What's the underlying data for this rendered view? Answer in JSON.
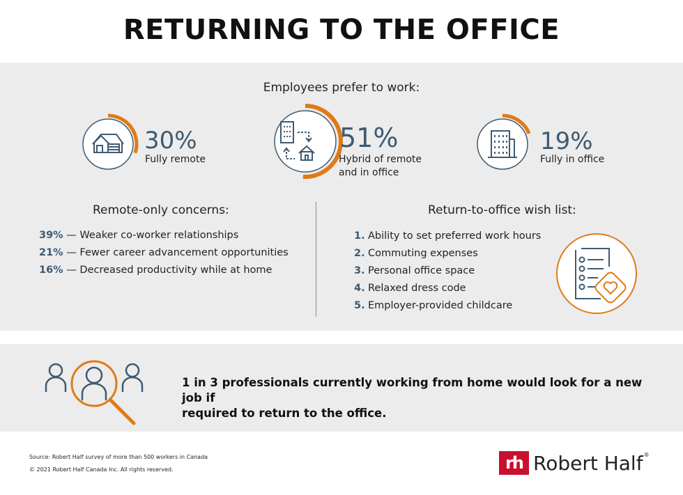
{
  "title": "RETURNING TO THE OFFICE",
  "prefer_heading": "Employees prefer to work:",
  "stats": [
    {
      "percent": "30%",
      "label_line1": "Fully remote",
      "label_line2": "",
      "share": 0.3,
      "icon": "house-icon"
    },
    {
      "percent": "51%",
      "label_line1": "Hybrid of remote",
      "label_line2": "and in office",
      "share": 0.51,
      "icon": "office-to-home-icon"
    },
    {
      "percent": "19%",
      "label_line1": "Fully in office",
      "label_line2": "",
      "share": 0.19,
      "icon": "office-building-icon"
    }
  ],
  "concerns": {
    "heading": "Remote-only concerns:",
    "items": [
      {
        "pct": "39%",
        "text": " — Weaker co-worker relationships"
      },
      {
        "pct": "21%",
        "text": " — Fewer career advancement opportunities"
      },
      {
        "pct": "16%",
        "text": " — Decreased productivity while at home"
      }
    ]
  },
  "wishlist": {
    "heading": "Return-to-office wish list:",
    "items": [
      {
        "num": "1.",
        "text": "Ability to set preferred work hours"
      },
      {
        "num": "2.",
        "text": "Commuting expenses"
      },
      {
        "num": "3.",
        "text": "Personal office space"
      },
      {
        "num": "4.",
        "text": "Relaxed dress code"
      },
      {
        "num": "5.",
        "text": "Employer-provided childcare"
      }
    ],
    "icon": "checklist-heart-icon"
  },
  "bottom": {
    "line1": "1 in 3 professionals currently working from home would look for a new job if",
    "line2": "required to return to the office.",
    "icon": "people-search-icon"
  },
  "footer": {
    "source": "Source: Robert Half survey of more than 500 workers in Canada",
    "copyright": "© 2021 Robert Half Canada Inc. All rights reserved."
  },
  "logo": {
    "mark": "rh",
    "text": "Robert Half",
    "reg": "®"
  },
  "colors": {
    "accent": "#e07a16",
    "navy": "#3f5a72",
    "panel": "#ececec",
    "brand_red": "#c8102e"
  }
}
